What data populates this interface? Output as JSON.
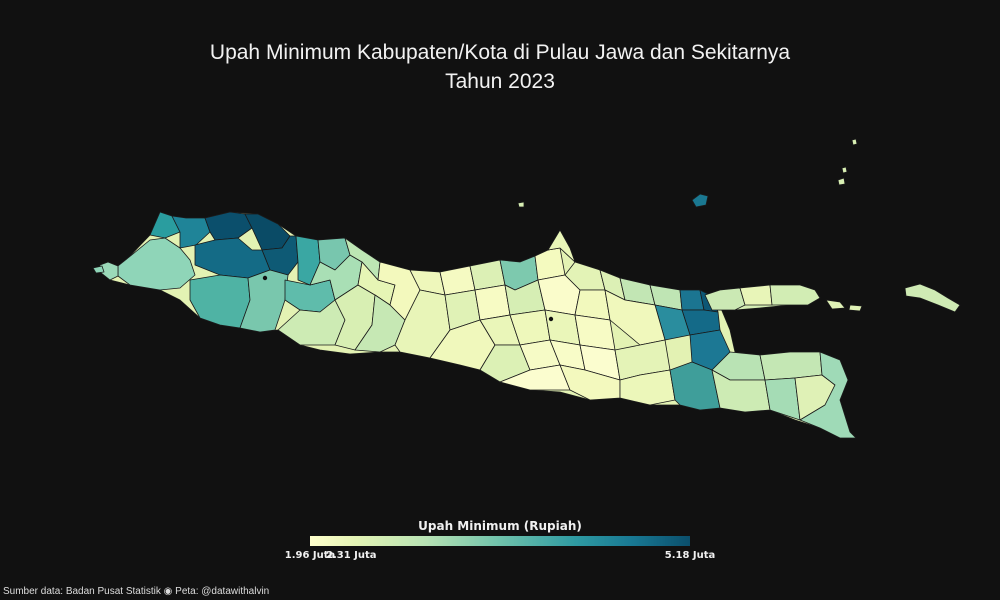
{
  "title": {
    "line1": "Upah Minimum Kabupaten/Kota di Pulau Jawa dan Sekitarnya",
    "line2": "Tahun 2023"
  },
  "legend": {
    "title": "Upah Minimum (Rupiah)",
    "min_value": 1960000,
    "max_value": 5180000,
    "ticks": [
      {
        "value": 1960000,
        "label": "1.96 Juta"
      },
      {
        "value": 2310000,
        "label": "2.31 Juta"
      },
      {
        "value": 5180000,
        "label": "5.18 Juta"
      }
    ],
    "colors": [
      "#ffffcc",
      "#c7e9b4",
      "#7fcdbb",
      "#41b6c4",
      "#1d91c0",
      "#1a7d8f",
      "#0b4f6c"
    ]
  },
  "map": {
    "background": "#111111",
    "border_color": "#1a1a1a"
  },
  "footer": {
    "source": "Sumber data: Badan Pusat Statistik ◉ Peta: @datawithalvin"
  }
}
